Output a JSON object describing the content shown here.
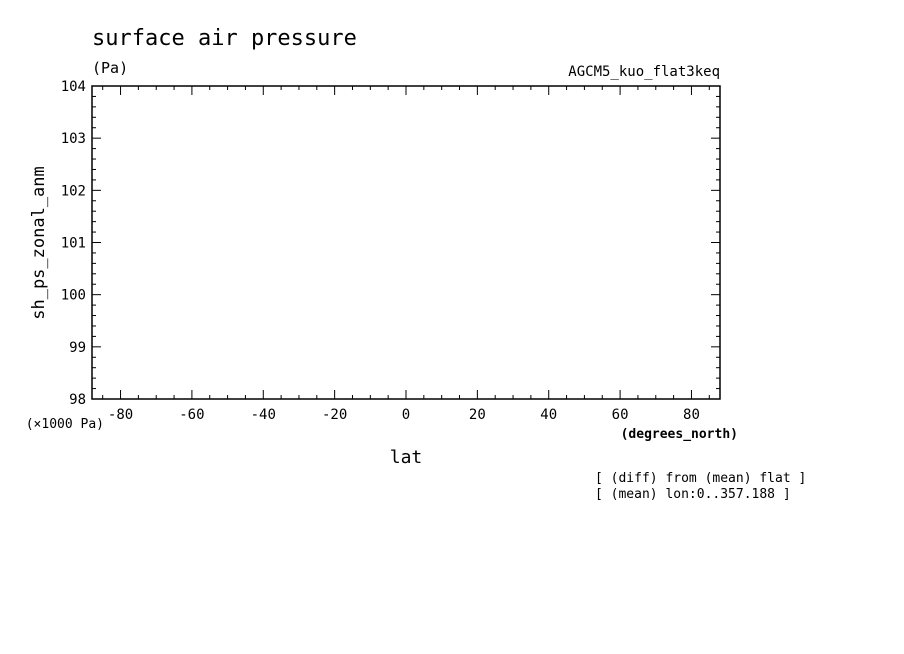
{
  "chart_data": {
    "type": "line",
    "title": "surface air pressure",
    "subtitle": "(Pa)",
    "dataset_label": "AGCM5_kuo_flat3keq",
    "xlabel": "lat",
    "x_units": "(degrees_north)",
    "ylabel": "sh_ps_zonal_anm",
    "y_units": "(×1000 Pa)",
    "xlim": [
      -88,
      88
    ],
    "ylim": [
      98,
      104
    ],
    "x_ticks": [
      -80,
      -60,
      -40,
      -20,
      0,
      20,
      40,
      60,
      80
    ],
    "x_tick_labels": [
      "-80",
      "-60",
      "-40",
      "-20",
      "0",
      "20",
      "40",
      "60",
      "80"
    ],
    "y_ticks": [
      98,
      99,
      100,
      101,
      102,
      103,
      104
    ],
    "y_tick_labels": [
      "98",
      "99",
      "100",
      "101",
      "102",
      "103",
      "104"
    ],
    "grid": false,
    "series": []
  },
  "notes": [
    "[ (diff) from (mean) flat ]",
    "[ (mean) lon:0..357.188 ]"
  ]
}
